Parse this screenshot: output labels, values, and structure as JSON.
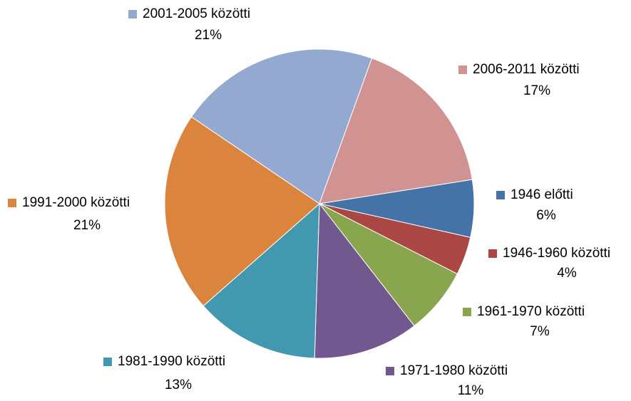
{
  "chart_data": {
    "type": "pie",
    "categories": [
      "1946 előtti",
      "1946-1960 közötti",
      "1961-1970 közötti",
      "1971-1980 közötti",
      "1981-1990 közötti",
      "1991-2000 közötti",
      "2001-2005 közötti",
      "2006-2011 közötti"
    ],
    "values": [
      6,
      4,
      7,
      11,
      13,
      21,
      21,
      17
    ],
    "value_labels": [
      "6%",
      "4%",
      "7%",
      "11%",
      "13%",
      "21%",
      "21%",
      "17%"
    ],
    "colors": [
      "#4572a7",
      "#aa4643",
      "#89a54e",
      "#71588f",
      "#4198af",
      "#db843d",
      "#93a9cf",
      "#d19392"
    ]
  }
}
